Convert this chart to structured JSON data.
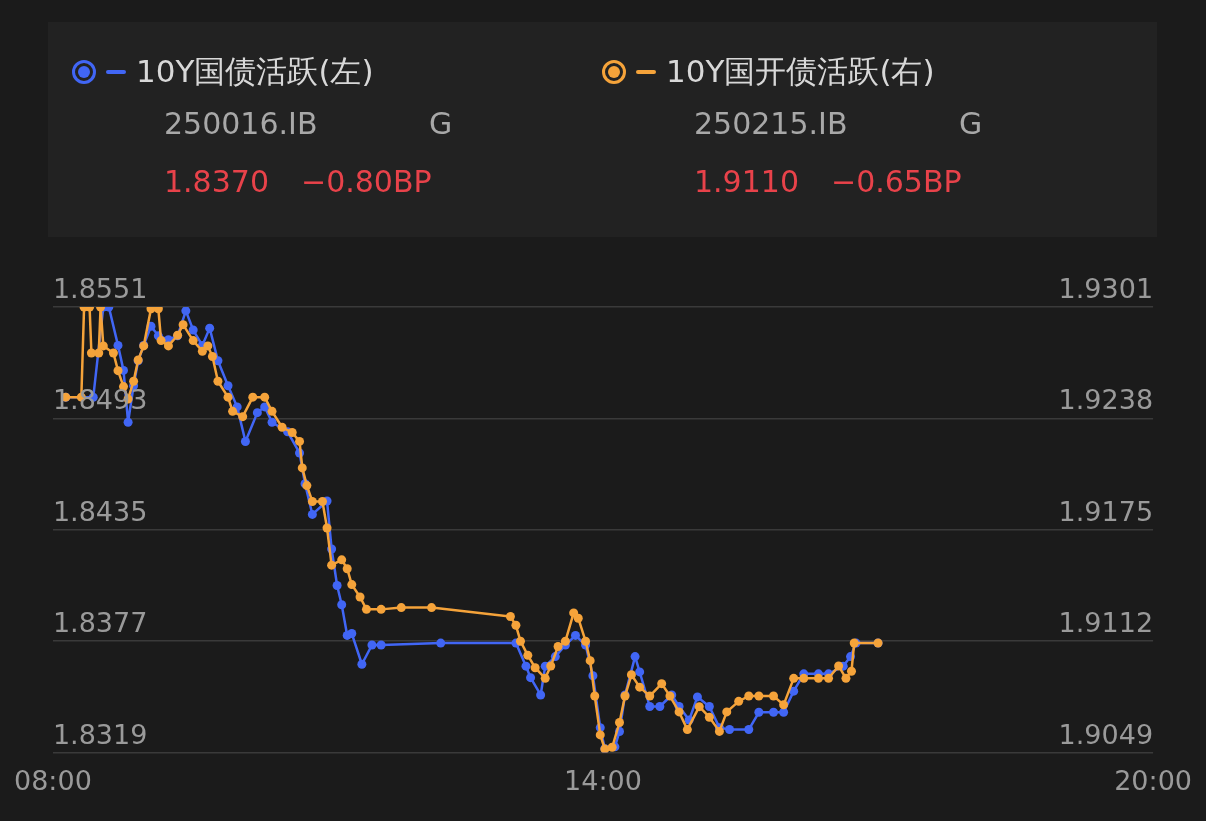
{
  "chart_data": {
    "type": "line",
    "legend": "top",
    "grid": "y",
    "marker": "circle",
    "annotations": [
      "250016.IB",
      "G",
      "1.8370",
      "−0.80BP",
      "250215.IB",
      "G",
      "1.9110",
      "−0.65BP"
    ],
    "xlim": [
      8,
      20
    ],
    "xticks": [
      {
        "value": 8,
        "label": "08:00"
      },
      {
        "value": 14,
        "label": "14:00"
      },
      {
        "value": 20,
        "label": "20:00"
      }
    ],
    "ylim": [
      1.8319,
      1.8551
    ],
    "yticks": [
      1.8319,
      1.8377,
      1.8435,
      1.8493,
      1.8551
    ],
    "y2lim": [
      1.9049,
      1.9301
    ],
    "y2ticks": [
      1.9049,
      1.9112,
      1.9175,
      1.9238,
      1.9301
    ],
    "series": [
      {
        "name": "10Y国债活跃(左)",
        "color": "#4166f5",
        "x": [
          8.14,
          8.44,
          8.55,
          8.61,
          8.71,
          8.77,
          8.82,
          8.88,
          8.93,
          8.99,
          9.07,
          9.15,
          9.26,
          9.36,
          9.45,
          9.53,
          9.63,
          9.71,
          9.8,
          9.91,
          10.01,
          10.1,
          10.23,
          10.31,
          10.39,
          10.56,
          10.69,
          10.75,
          10.83,
          10.99,
          11.04,
          11.1,
          11.15,
          11.21,
          11.26,
          11.37,
          11.48,
          11.58,
          12.23,
          13.05,
          13.16,
          13.21,
          13.32,
          13.37,
          13.48,
          13.59,
          13.7,
          13.81,
          13.89,
          13.97,
          14.02,
          14.13,
          14.18,
          14.24,
          14.35,
          14.4,
          14.51,
          14.62,
          14.75,
          14.83,
          14.94,
          15.03,
          15.16,
          15.27,
          15.38,
          15.59,
          15.7,
          15.86,
          15.97,
          16.08,
          16.19,
          16.35,
          16.46,
          16.62,
          16.7,
          16.76,
          17.0
        ],
        "values": [
          1.8504,
          1.8504,
          1.8551,
          1.8551,
          1.8531,
          1.8518,
          1.8491,
          1.851,
          1.8523,
          1.8531,
          1.8541,
          1.8536,
          1.8534,
          1.8536,
          1.8549,
          1.8539,
          1.8531,
          1.854,
          1.8523,
          1.851,
          1.8499,
          1.8481,
          1.8496,
          1.8499,
          1.8491,
          1.8486,
          1.8475,
          1.8459,
          1.8443,
          1.845,
          1.8425,
          1.8406,
          1.8396,
          1.838,
          1.8381,
          1.8365,
          1.8375,
          1.8375,
          1.8376,
          1.8376,
          1.8364,
          1.8358,
          1.8349,
          1.8364,
          1.8369,
          1.8375,
          1.838,
          1.8375,
          1.8359,
          1.8332,
          1.8321,
          1.8322,
          1.833,
          1.8349,
          1.8369,
          1.8361,
          1.8343,
          1.8343,
          1.8349,
          1.8343,
          1.8336,
          1.8348,
          1.8343,
          1.8332,
          1.8331,
          1.8331,
          1.834,
          1.834,
          1.834,
          1.8351,
          1.836,
          1.836,
          1.836,
          1.8364,
          1.8369,
          1.8376,
          1.8376
        ]
      },
      {
        "name": "10Y国开债活跃(右)",
        "color": "#f5a33a",
        "axis": "y2",
        "x": [
          8.14,
          8.31,
          8.34,
          8.4,
          8.42,
          8.5,
          8.52,
          8.55,
          8.66,
          8.71,
          8.77,
          8.82,
          8.88,
          8.93,
          8.99,
          9.07,
          9.15,
          9.18,
          9.26,
          9.36,
          9.42,
          9.53,
          9.63,
          9.69,
          9.74,
          9.8,
          9.91,
          9.96,
          10.07,
          10.18,
          10.31,
          10.39,
          10.5,
          10.61,
          10.69,
          10.72,
          10.77,
          10.83,
          10.94,
          10.99,
          11.04,
          11.15,
          11.21,
          11.26,
          11.35,
          11.42,
          11.58,
          11.8,
          12.13,
          12.99,
          13.05,
          13.1,
          13.18,
          13.26,
          13.37,
          13.43,
          13.51,
          13.59,
          13.68,
          13.73,
          13.81,
          13.86,
          13.91,
          13.97,
          14.02,
          14.1,
          14.18,
          14.24,
          14.31,
          14.4,
          14.51,
          14.64,
          14.73,
          14.83,
          14.92,
          15.05,
          15.16,
          15.27,
          15.35,
          15.48,
          15.59,
          15.7,
          15.86,
          15.97,
          16.08,
          16.19,
          16.35,
          16.46,
          16.57,
          16.65,
          16.71,
          16.74,
          17.0
        ],
        "values": [
          1.925,
          1.925,
          1.9301,
          1.9301,
          1.9275,
          1.9275,
          1.9301,
          1.9279,
          1.9275,
          1.9265,
          1.9256,
          1.9249,
          1.9259,
          1.9271,
          1.9279,
          1.93,
          1.93,
          1.9282,
          1.9279,
          1.9285,
          1.9291,
          1.9282,
          1.9276,
          1.9279,
          1.9273,
          1.9259,
          1.925,
          1.9242,
          1.9239,
          1.925,
          1.925,
          1.9242,
          1.9233,
          1.923,
          1.9225,
          1.921,
          1.92,
          1.9191,
          1.9191,
          1.9176,
          1.9155,
          1.9158,
          1.9153,
          1.9144,
          1.9137,
          1.913,
          1.913,
          1.9131,
          1.9131,
          1.9126,
          1.9121,
          1.9112,
          1.9104,
          1.9097,
          1.9091,
          1.9098,
          1.9109,
          1.9112,
          1.9128,
          1.9125,
          1.9112,
          1.9101,
          1.9081,
          1.9059,
          1.9051,
          1.9052,
          1.9066,
          1.9081,
          1.9093,
          1.9086,
          1.9081,
          1.9088,
          1.9081,
          1.9072,
          1.9062,
          1.9075,
          1.9069,
          1.9061,
          1.9072,
          1.9078,
          1.9081,
          1.9081,
          1.9081,
          1.9076,
          1.9091,
          1.9091,
          1.9091,
          1.9091,
          1.9098,
          1.9091,
          1.9095,
          1.9111,
          1.9111
        ]
      }
    ]
  }
}
